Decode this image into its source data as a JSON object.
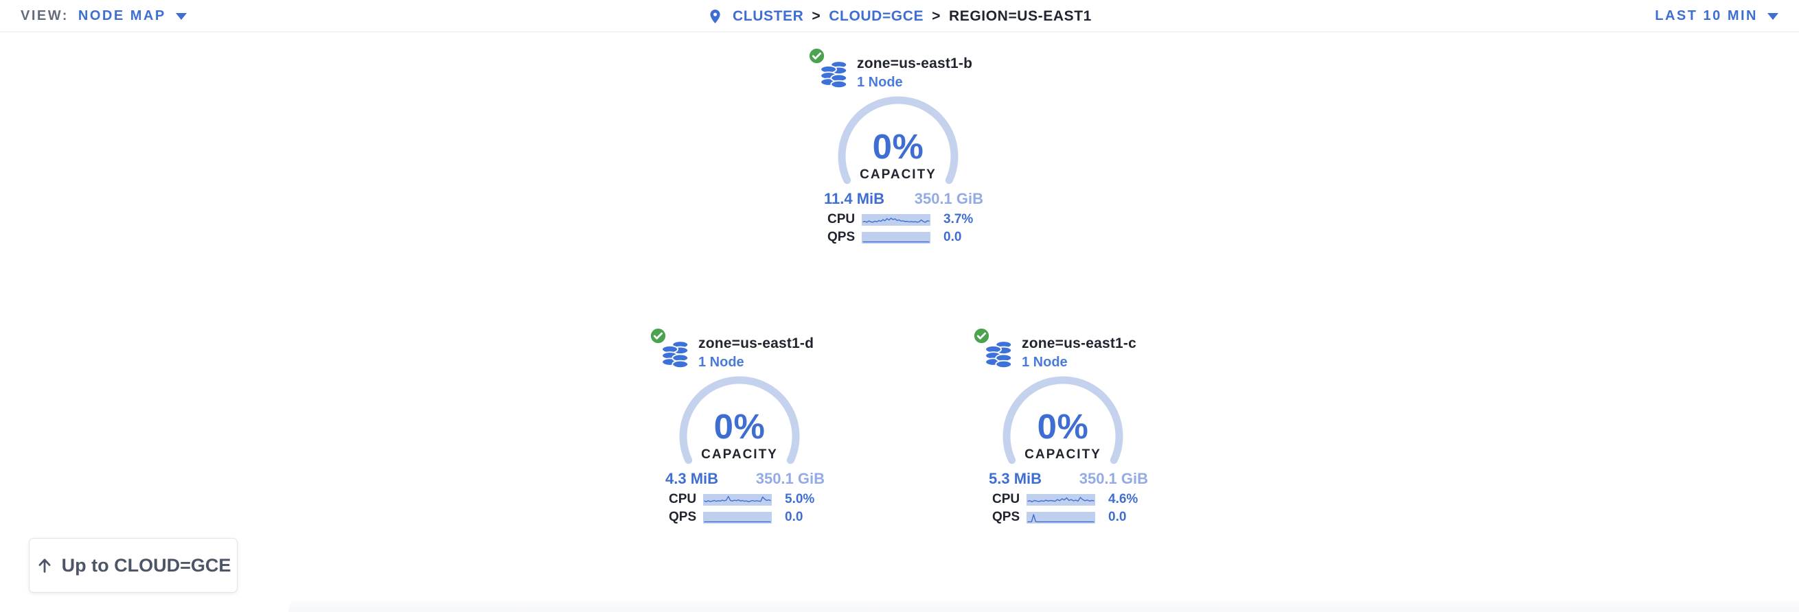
{
  "header": {
    "view_label": "VIEW:",
    "view_value": "NODE MAP",
    "time_range": "LAST 10 MIN",
    "separator": ">",
    "breadcrumb": [
      {
        "label": "CLUSTER"
      },
      {
        "label": "CLOUD=GCE"
      },
      {
        "label": "REGION=US-EAST1"
      }
    ]
  },
  "zones": [
    {
      "name": "zone=us-east1-b",
      "nodes": "1 Node",
      "status": "ok",
      "capacity_pct": "0%",
      "capacity_label": "CAPACITY",
      "used": "11.4 MiB",
      "total": "350.1 GiB",
      "cpu_label": "CPU",
      "cpu_value": "3.7%",
      "qps_label": "QPS",
      "qps_value": "0.0",
      "cpu_spark": [
        0.28,
        0.35,
        0.25,
        0.4,
        0.3,
        0.25,
        0.38,
        0.3,
        0.45,
        0.35,
        0.55,
        0.42,
        0.68,
        0.5,
        0.72,
        0.55,
        0.65,
        0.45,
        0.52,
        0.38,
        0.42,
        0.32,
        0.36,
        0.28,
        0.33,
        0.27,
        0.31,
        0.26,
        0.3,
        0.52,
        0.33,
        0.24,
        0.42,
        0.36
      ],
      "qps_spark": [
        0.03,
        0.03,
        0.03,
        0.03,
        0.03,
        0.03,
        0.03,
        0.03,
        0.03,
        0.03,
        0.03,
        0.03,
        0.03,
        0.03,
        0.03,
        0.03,
        0.03,
        0.03,
        0.03,
        0.03,
        0.03,
        0.03,
        0.03,
        0.03,
        0.03,
        0.03,
        0.03,
        0.03,
        0.03,
        0.03,
        0.03,
        0.03,
        0.03,
        0.03
      ]
    },
    {
      "name": "zone=us-east1-d",
      "nodes": "1 Node",
      "status": "ok",
      "capacity_pct": "0%",
      "capacity_label": "CAPACITY",
      "used": "4.3 MiB",
      "total": "350.1 GiB",
      "cpu_label": "CPU",
      "cpu_value": "5.0%",
      "qps_label": "QPS",
      "qps_value": "0.0",
      "cpu_spark": [
        0.4,
        0.3,
        0.42,
        0.32,
        0.38,
        0.45,
        0.35,
        0.42,
        0.38,
        0.48,
        0.4,
        0.5,
        0.92,
        0.45,
        0.38,
        0.48,
        0.42,
        0.52,
        0.38,
        0.45,
        0.35,
        0.4,
        0.3,
        0.38,
        0.44,
        0.36,
        0.42,
        0.38,
        0.35,
        0.85,
        0.6,
        0.45,
        0.52,
        0.42
      ],
      "qps_spark": [
        0.03,
        0.03,
        0.03,
        0.03,
        0.03,
        0.03,
        0.03,
        0.03,
        0.03,
        0.03,
        0.03,
        0.03,
        0.03,
        0.03,
        0.03,
        0.03,
        0.03,
        0.03,
        0.03,
        0.03,
        0.03,
        0.03,
        0.03,
        0.03,
        0.03,
        0.03,
        0.03,
        0.03,
        0.03,
        0.03,
        0.03,
        0.03,
        0.03,
        0.03
      ]
    },
    {
      "name": "zone=us-east1-c",
      "nodes": "1 Node",
      "status": "ok",
      "capacity_pct": "0%",
      "capacity_label": "CAPACITY",
      "used": "5.3 MiB",
      "total": "350.1 GiB",
      "cpu_label": "CPU",
      "cpu_value": "4.6%",
      "qps_label": "QPS",
      "qps_value": "0.0",
      "cpu_spark": [
        0.35,
        0.42,
        0.3,
        0.45,
        0.38,
        0.32,
        0.42,
        0.35,
        0.48,
        0.38,
        0.45,
        0.4,
        0.35,
        0.55,
        0.42,
        0.65,
        0.5,
        0.75,
        0.45,
        0.55,
        0.4,
        0.48,
        0.38,
        0.8,
        0.55,
        0.42,
        0.5,
        0.38,
        0.45,
        0.4
      ],
      "qps_spark": [
        0.03,
        0.03,
        0.05,
        0.88,
        0.06,
        0.03,
        0.03,
        0.03,
        0.03,
        0.03,
        0.03,
        0.03,
        0.03,
        0.03,
        0.03,
        0.03,
        0.03,
        0.03,
        0.03,
        0.03,
        0.03,
        0.03,
        0.03,
        0.03,
        0.03,
        0.03,
        0.03,
        0.03,
        0.03,
        0.03,
        0.03,
        0.03,
        0.03,
        0.03
      ]
    }
  ],
  "up_button": {
    "label": "Up to CLOUD=GCE"
  },
  "icons": {
    "breadcrumb_pin": "location-pin",
    "zone_status": "check-circle",
    "zone": "database-stack",
    "dropdown": "caret-down",
    "up_button": "arrow-up"
  },
  "colors": {
    "accent": "#3f6ed2",
    "accent-bright": "#3b71d8",
    "accent-light": "#93abe4",
    "arc": "#c4d2ee",
    "spark-bg": "#bfd0ef",
    "green": "#4ba350",
    "dark": "#20242e",
    "gray": "#636d7c"
  }
}
